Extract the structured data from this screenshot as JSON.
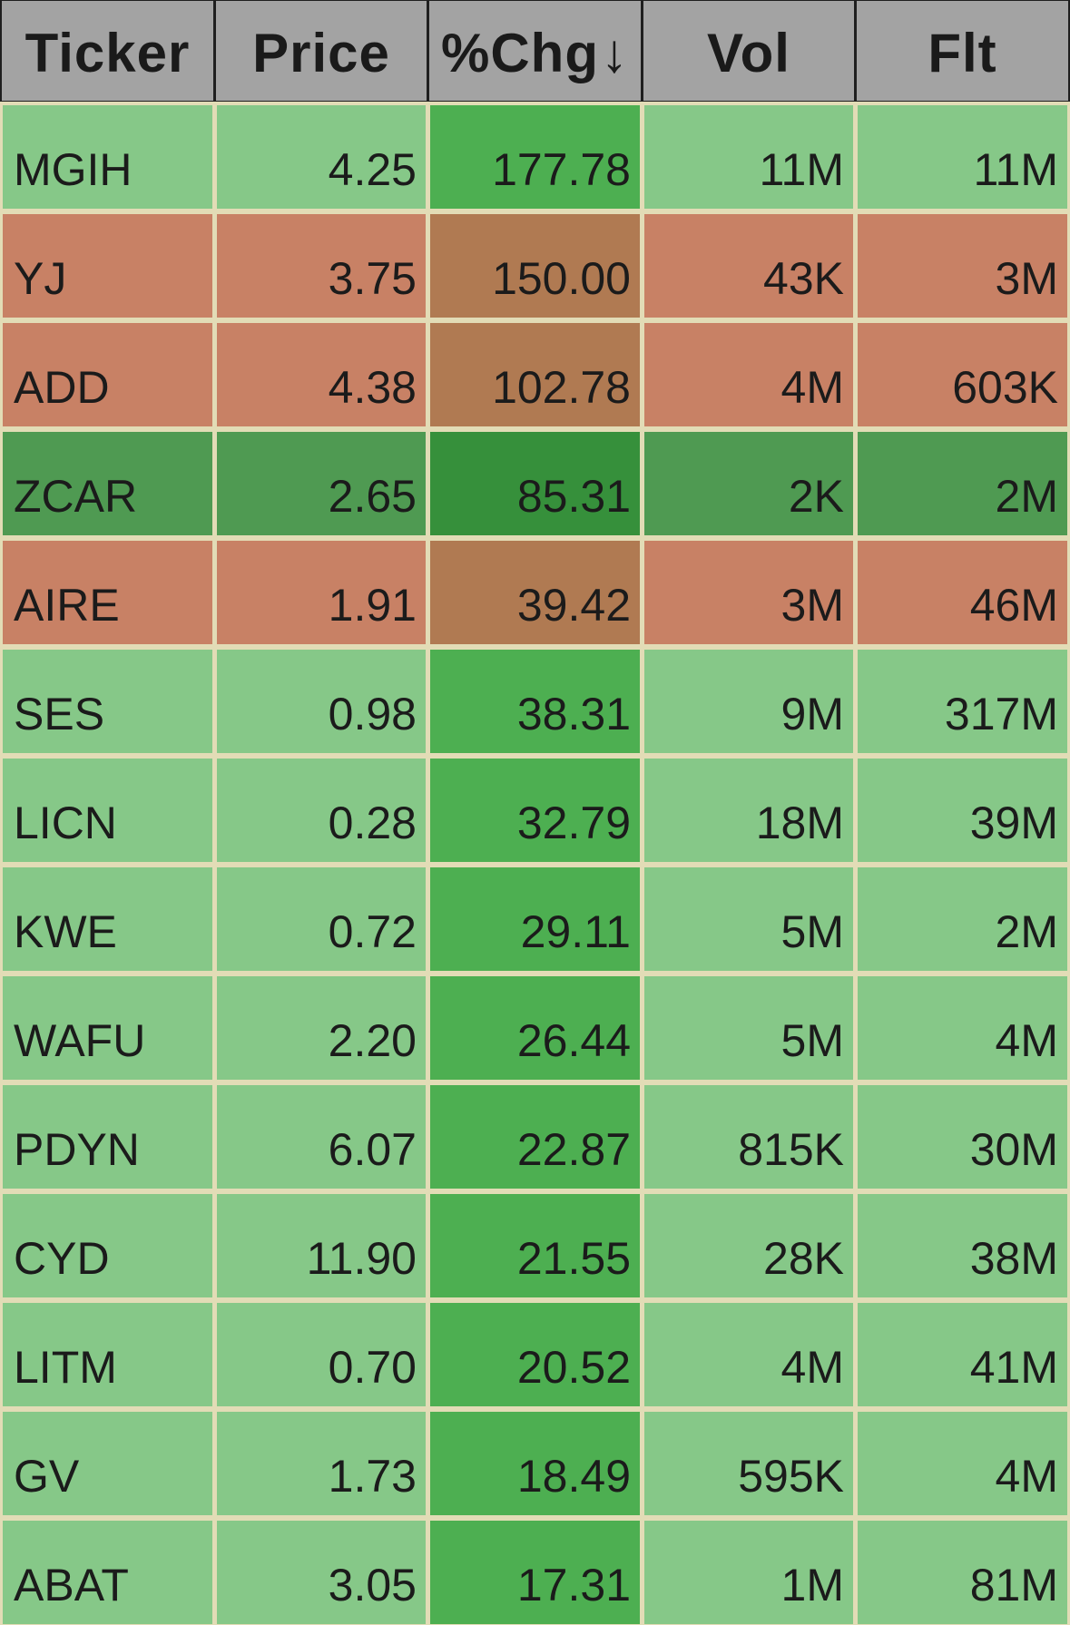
{
  "table": {
    "columns": [
      {
        "label": "Ticker"
      },
      {
        "label": "Price"
      },
      {
        "label": "%Chg",
        "sort_icon": "↓",
        "sort_icon_name": "arrow-down-icon"
      },
      {
        "label": "Vol"
      },
      {
        "label": "Flt"
      }
    ],
    "colors": {
      "light_green": "#86c888",
      "mid_green": "#4daf51",
      "dark_green": "#4f9a52",
      "darker_green": "#36903b",
      "salmon": "#c88165",
      "brown": "#b07a52",
      "grid": "#e2dcb6",
      "header_bg": "#a3a3a3"
    },
    "rows": [
      {
        "ticker": "MGIH",
        "price": "4.25",
        "chg": "177.78",
        "vol": "11M",
        "flt": "11M",
        "status": "up"
      },
      {
        "ticker": "YJ",
        "price": "3.75",
        "chg": "150.00",
        "vol": "43K",
        "flt": "3M",
        "status": "warn"
      },
      {
        "ticker": "ADD",
        "price": "4.38",
        "chg": "102.78",
        "vol": "4M",
        "flt": "603K",
        "status": "warn"
      },
      {
        "ticker": "ZCAR",
        "price": "2.65",
        "chg": "85.31",
        "vol": "2K",
        "flt": "2M",
        "status": "strong"
      },
      {
        "ticker": "AIRE",
        "price": "1.91",
        "chg": "39.42",
        "vol": "3M",
        "flt": "46M",
        "status": "warn"
      },
      {
        "ticker": "SES",
        "price": "0.98",
        "chg": "38.31",
        "vol": "9M",
        "flt": "317M",
        "status": "up"
      },
      {
        "ticker": "LICN",
        "price": "0.28",
        "chg": "32.79",
        "vol": "18M",
        "flt": "39M",
        "status": "up"
      },
      {
        "ticker": "KWE",
        "price": "0.72",
        "chg": "29.11",
        "vol": "5M",
        "flt": "2M",
        "status": "up"
      },
      {
        "ticker": "WAFU",
        "price": "2.20",
        "chg": "26.44",
        "vol": "5M",
        "flt": "4M",
        "status": "up"
      },
      {
        "ticker": "PDYN",
        "price": "6.07",
        "chg": "22.87",
        "vol": "815K",
        "flt": "30M",
        "status": "up"
      },
      {
        "ticker": "CYD",
        "price": "11.90",
        "chg": "21.55",
        "vol": "28K",
        "flt": "38M",
        "status": "up"
      },
      {
        "ticker": "LITM",
        "price": "0.70",
        "chg": "20.52",
        "vol": "4M",
        "flt": "41M",
        "status": "up"
      },
      {
        "ticker": "GV",
        "price": "1.73",
        "chg": "18.49",
        "vol": "595K",
        "flt": "4M",
        "status": "up"
      },
      {
        "ticker": "ABAT",
        "price": "3.05",
        "chg": "17.31",
        "vol": "1M",
        "flt": "81M",
        "status": "up"
      }
    ]
  }
}
